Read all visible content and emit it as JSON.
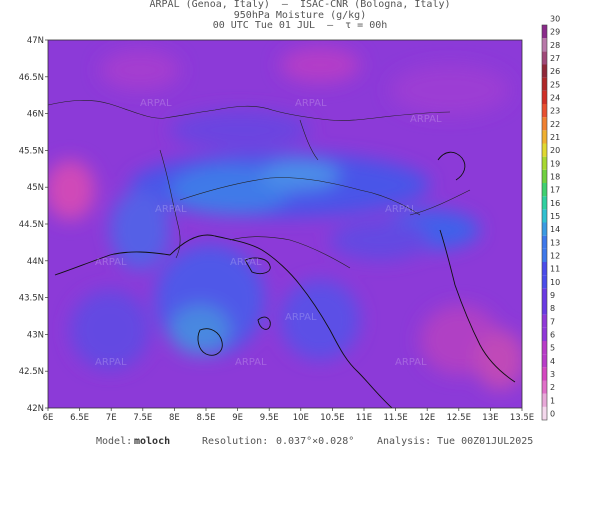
{
  "header": {
    "line1": "ARPAL (Genoa, Italy)  –  ISAC-CNR (Bologna, Italy)",
    "line2": "950hPa Moisture (g/kg)",
    "line3": "00 UTC Tue 01 JUL  –  τ = 00h"
  },
  "watermark": "ARPAL",
  "lat_labels": [
    "47N",
    "46.5N",
    "46N",
    "45.5N",
    "45N",
    "44.5N",
    "44N",
    "43.5N",
    "43N",
    "42.5N",
    "42N"
  ],
  "lon_labels": [
    "6E",
    "6.5E",
    "7E",
    "7.5E",
    "8E",
    "8.5E",
    "9E",
    "9.5E",
    "10E",
    "10.5E",
    "11E",
    "11.5E",
    "12E",
    "12.5E",
    "13E",
    "13.5E"
  ],
  "colorbar": {
    "min": 0,
    "max": 30,
    "labels": [
      "0",
      "1",
      "2",
      "3",
      "4",
      "5",
      "6",
      "7",
      "8",
      "9",
      "10",
      "11",
      "12",
      "13",
      "14",
      "15",
      "16",
      "17",
      "18",
      "19",
      "20",
      "21",
      "22",
      "23",
      "24",
      "25",
      "26",
      "27",
      "28",
      "29",
      "30"
    ]
  },
  "footer": {
    "model_label": "Model:",
    "model_value": "moloch",
    "resolution_label": "Resolution:",
    "resolution_value": "0.037°×0.028°",
    "analysis_label": "Analysis:",
    "analysis_value": "Tue 00Z01JUL2025"
  }
}
